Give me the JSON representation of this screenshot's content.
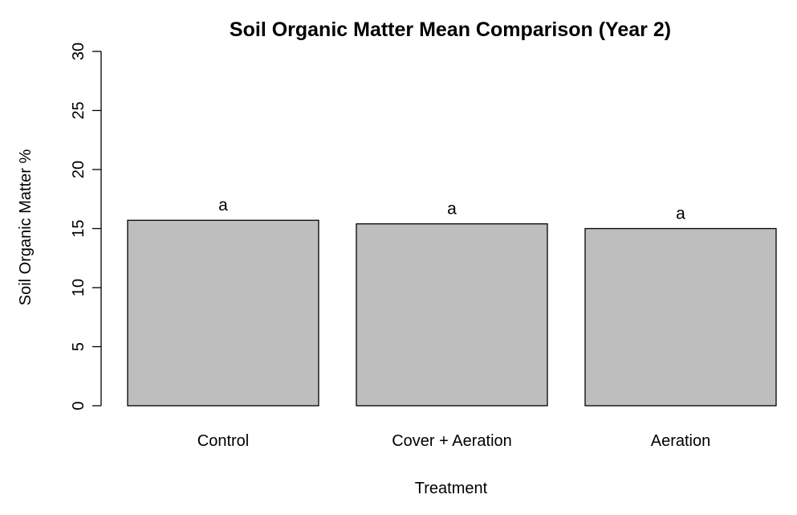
{
  "chart_data": {
    "type": "bar",
    "title": "Soil Organic Matter Mean Comparison (Year 2)",
    "xlabel": "Treatment",
    "ylabel": "Soil Organic Matter %",
    "categories": [
      "Control",
      "Cover + Aeration",
      "Aeration"
    ],
    "values": [
      15.7,
      15.4,
      15.0
    ],
    "bar_labels": [
      "a",
      "a",
      "a"
    ],
    "ylim": [
      0,
      30
    ],
    "yticks": [
      0,
      5,
      10,
      15,
      20,
      25,
      30
    ],
    "grid": false,
    "legend": "none",
    "bar_color": "#bebebe"
  }
}
